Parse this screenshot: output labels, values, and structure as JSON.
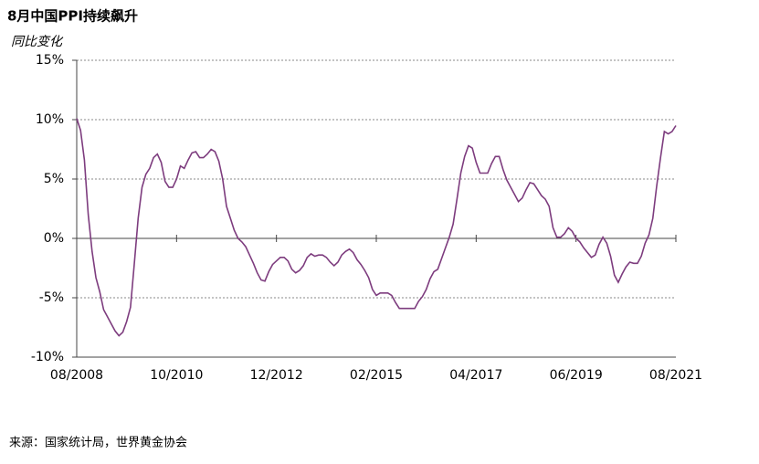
{
  "chart_data": {
    "type": "line",
    "title": "8月中国PPI持续飙升",
    "subtitle": "同比变化",
    "source": "来源：国家统计局，世界黄金协会",
    "categories": [
      "08/2008",
      null,
      null,
      null,
      null,
      null,
      null,
      null,
      null,
      null,
      null,
      null,
      null,
      null,
      null,
      null,
      null,
      null,
      null,
      null,
      null,
      null,
      null,
      null,
      null,
      null,
      "10/2010",
      null,
      null,
      null,
      null,
      null,
      null,
      null,
      null,
      null,
      null,
      null,
      null,
      null,
      null,
      null,
      null,
      null,
      null,
      null,
      null,
      null,
      null,
      null,
      null,
      null,
      "12/2012",
      null,
      null,
      null,
      null,
      null,
      null,
      null,
      null,
      null,
      null,
      null,
      null,
      null,
      null,
      null,
      null,
      null,
      null,
      null,
      null,
      null,
      null,
      null,
      null,
      null,
      "02/2015",
      null,
      null,
      null,
      null,
      null,
      null,
      null,
      null,
      null,
      null,
      null,
      null,
      null,
      null,
      null,
      null,
      null,
      null,
      null,
      null,
      null,
      null,
      null,
      null,
      null,
      "04/2017",
      null,
      null,
      null,
      null,
      null,
      null,
      null,
      null,
      null,
      null,
      null,
      null,
      null,
      null,
      null,
      null,
      null,
      null,
      null,
      null,
      null,
      null,
      null,
      null,
      null,
      "06/2019",
      null,
      null,
      null,
      null,
      null,
      null,
      null,
      null,
      null,
      null,
      null,
      null,
      null,
      null,
      null,
      null,
      null,
      null,
      null,
      null,
      null,
      null,
      null,
      null,
      null,
      "08/2021"
    ],
    "values": [
      10.1,
      9.1,
      6.6,
      2.0,
      -1.1,
      -3.3,
      -4.5,
      -6.0,
      -6.6,
      -7.2,
      -7.8,
      -8.2,
      -7.9,
      -7.0,
      -5.8,
      -2.1,
      1.7,
      4.3,
      5.4,
      5.9,
      6.8,
      7.1,
      6.4,
      4.8,
      4.3,
      4.3,
      5.0,
      6.1,
      5.9,
      6.6,
      7.2,
      7.3,
      6.8,
      6.8,
      7.1,
      7.5,
      7.3,
      6.5,
      5.0,
      2.7,
      1.7,
      0.7,
      0.0,
      -0.3,
      -0.7,
      -1.4,
      -2.1,
      -2.9,
      -3.5,
      -3.6,
      -2.8,
      -2.2,
      -1.9,
      -1.6,
      -1.6,
      -1.9,
      -2.6,
      -2.9,
      -2.7,
      -2.3,
      -1.6,
      -1.3,
      -1.5,
      -1.4,
      -1.4,
      -1.6,
      -2.0,
      -2.3,
      -2.0,
      -1.4,
      -1.1,
      -0.9,
      -1.2,
      -1.8,
      -2.2,
      -2.7,
      -3.3,
      -4.3,
      -4.8,
      -4.6,
      -4.6,
      -4.6,
      -4.8,
      -5.4,
      -5.9,
      -5.9,
      -5.9,
      -5.9,
      -5.9,
      -5.3,
      -4.9,
      -4.3,
      -3.4,
      -2.8,
      -2.6,
      -1.7,
      -0.8,
      0.1,
      1.2,
      3.3,
      5.5,
      6.9,
      7.8,
      7.6,
      6.4,
      5.5,
      5.5,
      5.5,
      6.3,
      6.9,
      6.9,
      5.8,
      4.9,
      4.3,
      3.7,
      3.1,
      3.4,
      4.1,
      4.7,
      4.6,
      4.1,
      3.6,
      3.3,
      2.7,
      0.9,
      0.1,
      0.1,
      0.4,
      0.9,
      0.6,
      0.0,
      -0.3,
      -0.8,
      -1.2,
      -1.6,
      -1.4,
      -0.5,
      0.1,
      -0.4,
      -1.5,
      -3.1,
      -3.7,
      -3.0,
      -2.4,
      -2.0,
      -2.1,
      -2.1,
      -1.5,
      -0.4,
      0.3,
      1.7,
      4.4,
      6.8,
      9.0,
      8.8,
      9.0,
      9.5
    ],
    "color": "#7d3c7e",
    "ylim": [
      -10,
      15
    ],
    "yticks": [
      {
        "value": -10,
        "label": "-10%"
      },
      {
        "value": -5,
        "label": "-5%"
      },
      {
        "value": 0,
        "label": "0%"
      },
      {
        "value": 5,
        "label": "5%"
      },
      {
        "value": 10,
        "label": "10%"
      },
      {
        "value": 15,
        "label": "15%"
      }
    ],
    "grid": true
  }
}
